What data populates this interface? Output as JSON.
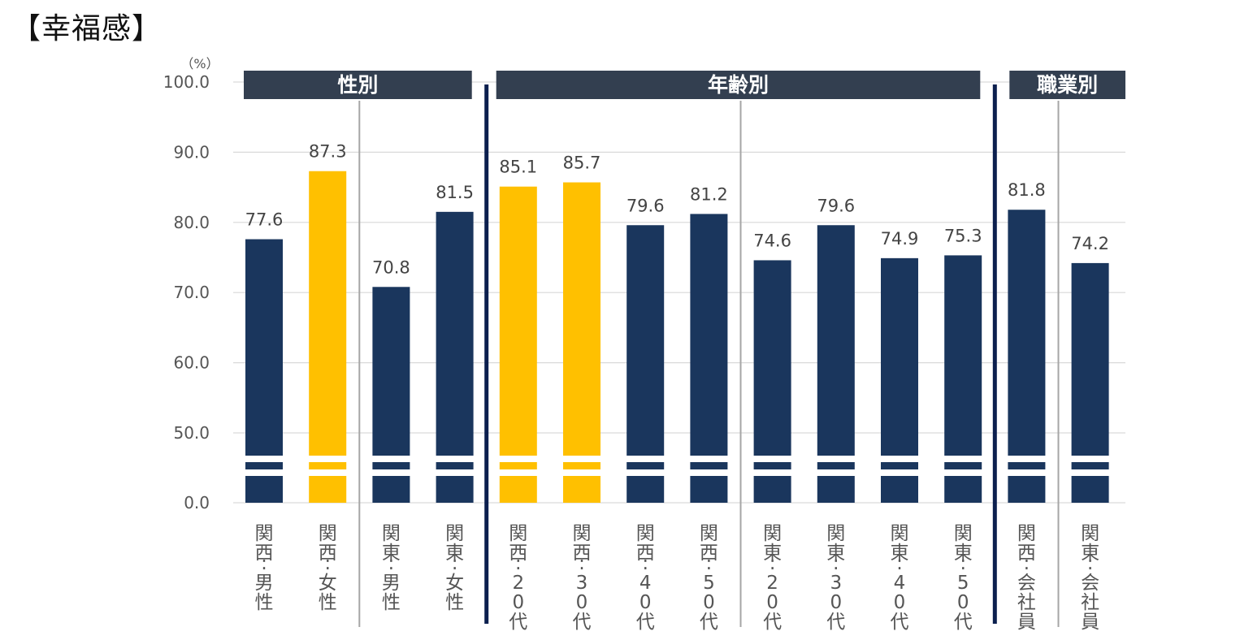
{
  "page_title": "【幸福感】",
  "chart_data": {
    "type": "bar",
    "title": "【幸福感】",
    "unit": "（%）",
    "ylim": [
      0,
      100
    ],
    "y_ticks": [
      "100.0",
      "90.0",
      "80.0",
      "70.0",
      "60.0",
      "50.0",
      "0.0"
    ],
    "axis_break": "between 0.0 and 50.0",
    "groups": [
      {
        "label": "性別",
        "start": 0,
        "end": 3
      },
      {
        "label": "年齢別",
        "start": 4,
        "end": 11
      },
      {
        "label": "職業別",
        "start": 12,
        "end": 13
      }
    ],
    "categories": [
      "関西:男性",
      "関西:女性",
      "関東:男性",
      "関東:女性",
      "関西:20代",
      "関西:30代",
      "関西:40代",
      "関西:50代",
      "関東:20代",
      "関東:30代",
      "関東:40代",
      "関東:50代",
      "関西:会社員",
      "関東:会社員"
    ],
    "values": [
      77.6,
      87.3,
      70.8,
      81.5,
      85.1,
      85.7,
      79.6,
      81.2,
      74.6,
      79.6,
      74.9,
      75.3,
      81.8,
      74.2
    ],
    "value_labels": [
      "77.6",
      "87.3",
      "70.8",
      "81.5",
      "85.1",
      "85.7",
      "79.6",
      "81.2",
      "74.6",
      "79.6",
      "74.9",
      "75.3",
      "81.8",
      "74.2"
    ],
    "highlighted": [
      false,
      true,
      false,
      false,
      true,
      true,
      false,
      false,
      false,
      false,
      false,
      false,
      false,
      false
    ],
    "colors": {
      "bar": "#1a365d",
      "highlight": "#ffc000",
      "group_header": "#333f50",
      "group_divider": "#0b1f4e",
      "sub_divider": "#a6a6a6",
      "grid": "#d9d9d9"
    }
  }
}
